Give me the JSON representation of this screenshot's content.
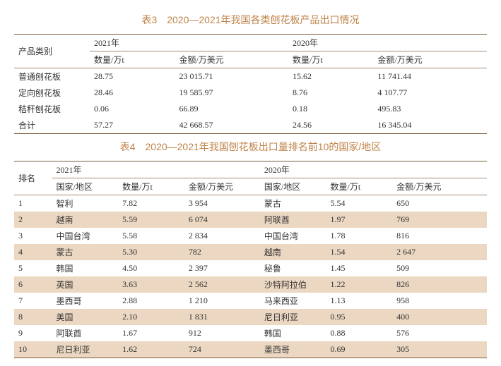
{
  "table3": {
    "title": "表3　2020—2021年我国各类刨花板产品出口情况",
    "head": {
      "product": "产品类别",
      "y2021": "2021年",
      "y2020": "2020年",
      "qty": "数量/万t",
      "amt": "金额/万美元"
    },
    "rows": [
      {
        "name": "普通刨花板",
        "q21": "28.75",
        "a21": "23 015.71",
        "q20": "15.62",
        "a20": "11 741.44"
      },
      {
        "name": "定向刨花板",
        "q21": "28.46",
        "a21": "19 585.97",
        "q20": "8.76",
        "a20": "4 107.77"
      },
      {
        "name": "秸秆刨花板",
        "q21": "0.06",
        "a21": "66.89",
        "q20": "0.18",
        "a20": "495.83"
      },
      {
        "name": "合计",
        "q21": "57.27",
        "a21": "42 668.57",
        "q20": "24.56",
        "a20": "16 345.04"
      }
    ]
  },
  "table4": {
    "title": "表4　2020—2021年我国刨花板出口量排名前10的国家/地区",
    "head": {
      "rank": "排名",
      "y2021": "2021年",
      "y2020": "2020年",
      "country": "国家/地区",
      "qty": "数量/万t",
      "amt": "金额/万美元"
    },
    "rows": [
      {
        "r": "1",
        "c21": "智利",
        "q21": "7.82",
        "a21": "3 954",
        "c20": "蒙古",
        "q20": "5.54",
        "a20": "650"
      },
      {
        "r": "2",
        "c21": "越南",
        "q21": "5.59",
        "a21": "6 074",
        "c20": "阿联酋",
        "q20": "1.97",
        "a20": "769"
      },
      {
        "r": "3",
        "c21": "中国台湾",
        "q21": "5.58",
        "a21": "2 834",
        "c20": "中国台湾",
        "q20": "1.78",
        "a20": "816"
      },
      {
        "r": "4",
        "c21": "蒙古",
        "q21": "5.30",
        "a21": "782",
        "c20": "越南",
        "q20": "1.54",
        "a20": "2 647"
      },
      {
        "r": "5",
        "c21": "韩国",
        "q21": "4.50",
        "a21": "2 397",
        "c20": "秘鲁",
        "q20": "1.45",
        "a20": "509"
      },
      {
        "r": "6",
        "c21": "英国",
        "q21": "3.63",
        "a21": "2 562",
        "c20": "沙特阿拉伯",
        "q20": "1.22",
        "a20": "826"
      },
      {
        "r": "7",
        "c21": "墨西哥",
        "q21": "2.88",
        "a21": "1 210",
        "c20": "马来西亚",
        "q20": "1.13",
        "a20": "958"
      },
      {
        "r": "8",
        "c21": "美国",
        "q21": "2.10",
        "a21": "1 831",
        "c20": "尼日利亚",
        "q20": "0.95",
        "a20": "400"
      },
      {
        "r": "9",
        "c21": "阿联酋",
        "q21": "1.67",
        "a21": "912",
        "c20": "韩国",
        "q20": "0.88",
        "a20": "576"
      },
      {
        "r": "10",
        "c21": "尼日利亚",
        "q21": "1.62",
        "a21": "724",
        "c20": "墨西哥",
        "q20": "0.69",
        "a20": "305"
      }
    ]
  }
}
